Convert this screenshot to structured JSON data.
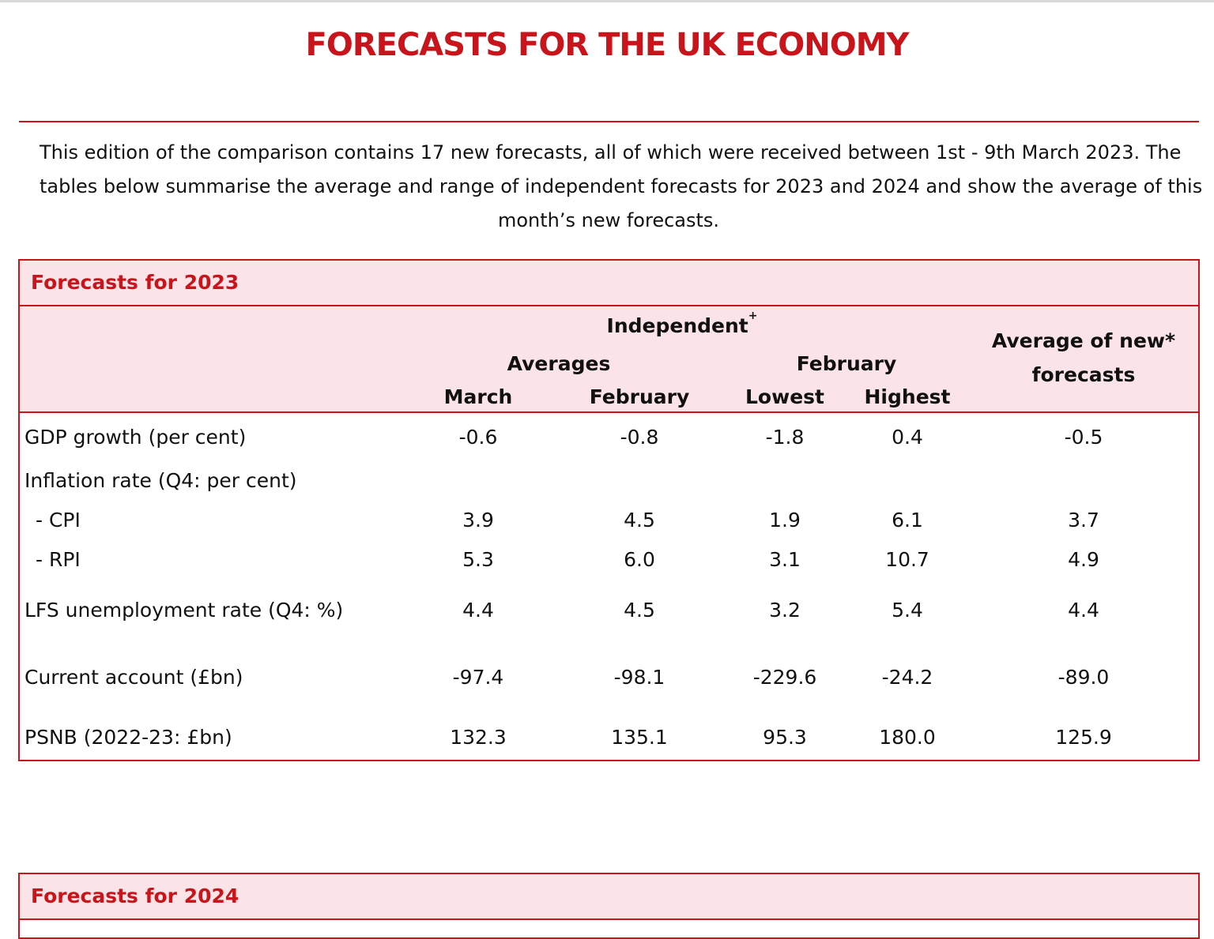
{
  "document": {
    "title": "FORECASTS FOR THE UK ECONOMY",
    "intro_lines": [
      "This edition of the comparison contains 17 new forecasts, all of which were received between 1st - 9th March 2023. The",
      "tables below summarise the average and range of independent forecasts for 2023 and 2024 and show the average of this",
      "month’s new forecasts."
    ]
  },
  "table_2023": {
    "title": "Forecasts for 2023",
    "headers": {
      "group": "Independent",
      "group_mark": "+",
      "averages": "Averages",
      "range_month": "February",
      "march": "March",
      "february": "February",
      "lowest": "Lowest",
      "highest": "Highest",
      "new_avg_line1": "Average of new*",
      "new_avg_line2": "forecasts"
    },
    "rows": [
      {
        "label": "GDP growth (per cent)",
        "values": [
          "-0.6",
          "-0.8",
          "-1.8",
          "0.4",
          "-0.5"
        ]
      },
      {
        "label": "Inflation rate (Q4:  per cent)",
        "values": [
          "",
          "",
          "",
          "",
          ""
        ]
      },
      {
        "label": "-   CPI",
        "values": [
          "3.9",
          "4.5",
          "1.9",
          "6.1",
          "3.7"
        ]
      },
      {
        "label": "-   RPI",
        "values": [
          "5.3",
          "6.0",
          "3.1",
          "10.7",
          "4.9"
        ]
      },
      {
        "label": "LFS unemployment rate (Q4: %)",
        "values": [
          "4.4",
          "4.5",
          "3.2",
          "5.4",
          "4.4"
        ]
      },
      {
        "label": "Current account (£bn)",
        "values": [
          "-97.4",
          "-98.1",
          "-229.6",
          "-24.2",
          "-89.0"
        ]
      },
      {
        "label": "PSNB (2022-23: £bn)",
        "values": [
          "132.3",
          "135.1",
          "95.3",
          "180.0",
          "125.9"
        ]
      }
    ]
  },
  "table_2024": {
    "title": "Forecasts for 2024"
  }
}
